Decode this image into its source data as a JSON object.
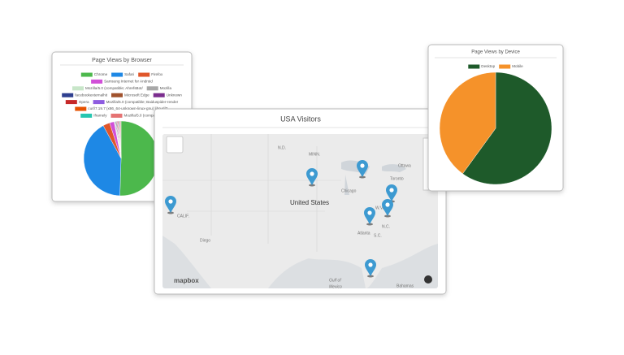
{
  "chart_data": [
    {
      "type": "pie",
      "title": "Page Views by Browser",
      "categories": [
        "Chrome",
        "Safari",
        "Firefox",
        "Samsung Internet for Android",
        "Mozilla/5.0 (compatible; AhrefsBot/",
        "Mozilla",
        "facebookexternalhit",
        "Microsoft Edge",
        "Unknown",
        "Opera",
        "Mozilla/5.0 (compatible; Baiduspider-render",
        "curl/7.19.7 (x86_64-unknown-linux-gnu) libcurl/7.",
        "Iframely",
        "Mozilla/5.0 (compatible;"
      ],
      "values": [
        51,
        42,
        3,
        2,
        0.3,
        0.3,
        0.3,
        0.3,
        0.3,
        0.3,
        0.3,
        0.3,
        0.3,
        0.3
      ],
      "colors": [
        "#4cb84c",
        "#1e88e5",
        "#e0562a",
        "#d14fd8",
        "#c8e6c9",
        "#a8a8a8",
        "#2e3f8f",
        "#a0522d",
        "#7b2d8e",
        "#c62828",
        "#8e5ce0",
        "#e65100",
        "#26c6b0",
        "#e57373"
      ]
    },
    {
      "type": "pie",
      "title": "Page Views by Device",
      "categories": [
        "Desktop",
        "Mobile"
      ],
      "values": [
        60,
        40
      ],
      "colors": [
        "#1e5a2a",
        "#f5922a"
      ]
    }
  ],
  "map": {
    "title": "USA Visitors",
    "attribution": "mapbox",
    "labels": [
      "N.D.",
      "MINN.",
      "United States",
      "Chicago",
      "Toronto",
      "Ottawa",
      "W.VA.",
      "N.C.",
      "S.C.",
      "Atlanta",
      "CALIF.",
      "Diego",
      "Gulf of",
      "Mexico",
      "Bahamas"
    ]
  }
}
